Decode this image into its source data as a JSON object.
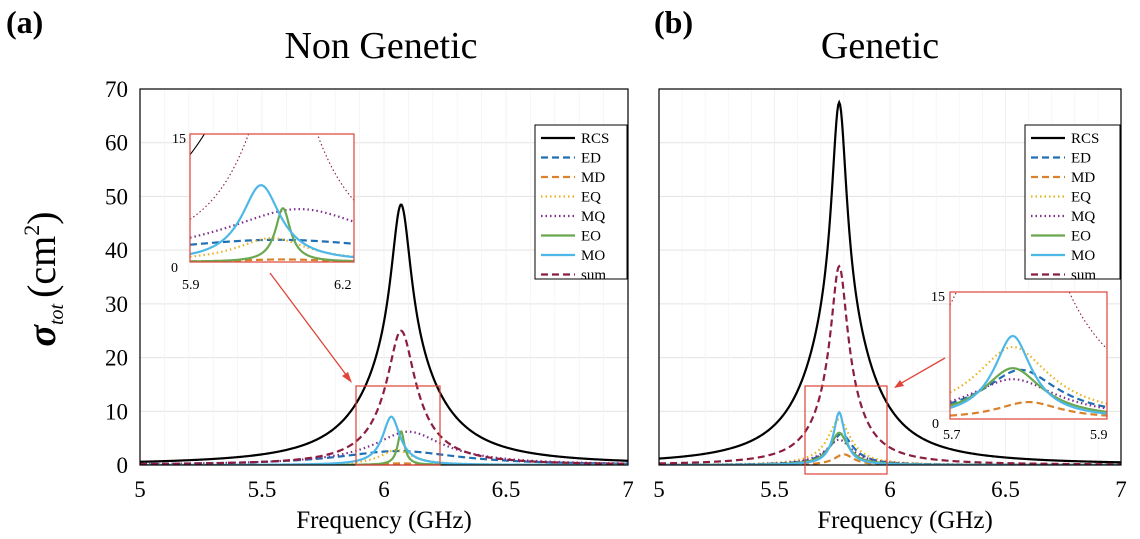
{
  "figure": {
    "y_label_symbol": "σ",
    "y_label_subscript": "tot",
    "y_label_unit": "(cm",
    "y_label_unit_sup": "2",
    "y_label_unit_close": ")"
  },
  "chart_data": [
    {
      "type": "line",
      "panel_label": "(a)",
      "title": "Non Genetic",
      "xlabel": "Frequency (GHz)",
      "ylabel": "σtot (cm²)",
      "xlim": [
        5,
        7
      ],
      "ylim": [
        0,
        70
      ],
      "x_ticks": [
        "5",
        "5.5",
        "6",
        "6.5",
        "7"
      ],
      "y_ticks": [
        "0",
        "10",
        "20",
        "30",
        "40",
        "50",
        "60",
        "70"
      ],
      "grid": true,
      "legend_position": "top-right",
      "legend": [
        "RCS",
        "ED",
        "MD",
        "EQ",
        "MQ",
        "EO",
        "MO",
        "sum"
      ],
      "series": [
        {
          "name": "RCS",
          "color": "#000000",
          "dash": "solid",
          "peak_x": 6.07,
          "peak_y": 48.5,
          "halfwidth": 0.05,
          "tail_gamma": 0.18
        },
        {
          "name": "ED",
          "color": "#1f6fb4",
          "dash": "dashed",
          "peak_x": 6.06,
          "peak_y": 2.6,
          "halfwidth": 0.3,
          "tail_gamma": 0.3
        },
        {
          "name": "MD",
          "color": "#d9822b",
          "dash": "dashed",
          "peak_x": 6.07,
          "peak_y": 0.3,
          "halfwidth": 0.1,
          "tail_gamma": 0.1
        },
        {
          "name": "EQ",
          "color": "#e6b422",
          "dash": "dotted",
          "peak_x": 6.05,
          "peak_y": 2.8,
          "halfwidth": 0.08,
          "tail_gamma": 0.08
        },
        {
          "name": "MQ",
          "color": "#7e2f8e",
          "dash": "dotted",
          "peak_x": 6.1,
          "peak_y": 6.2,
          "halfwidth": 0.15,
          "tail_gamma": 0.25
        },
        {
          "name": "EO",
          "color": "#6aa84f",
          "dash": "solid",
          "peak_x": 6.07,
          "peak_y": 6.3,
          "halfwidth": 0.015,
          "tail_gamma": 0.02
        },
        {
          "name": "MO",
          "color": "#4db8e8",
          "dash": "solid",
          "peak_x": 6.03,
          "peak_y": 9.0,
          "halfwidth": 0.04,
          "tail_gamma": 0.05
        },
        {
          "name": "sum",
          "color": "#8b1e3f",
          "dash": "dashed",
          "peak_x": 6.07,
          "peak_y": 25.0,
          "halfwidth": 0.06,
          "tail_gamma": 0.12
        }
      ],
      "inset": {
        "xlim": [
          5.9,
          6.2
        ],
        "ylim": [
          0,
          15
        ],
        "x_ticks": [
          "5.9",
          "6.2"
        ],
        "y_ticks": [
          "0",
          "15"
        ]
      }
    },
    {
      "type": "line",
      "panel_label": "(b)",
      "title": "Genetic",
      "xlabel": "Frequency (GHz)",
      "ylabel": "",
      "xlim": [
        5,
        7
      ],
      "ylim": [
        0,
        70
      ],
      "x_ticks": [
        "5",
        "5.5",
        "6",
        "6.5",
        "7"
      ],
      "grid": true,
      "legend_position": "top-right",
      "legend": [
        "RCS",
        "ED",
        "MD",
        "EQ",
        "MQ",
        "EO",
        "MO",
        "sum"
      ],
      "series": [
        {
          "name": "RCS",
          "color": "#000000",
          "dash": "solid",
          "peak_x": 5.78,
          "peak_y": 67.5,
          "halfwidth": 0.04,
          "tail_gamma": 0.16
        },
        {
          "name": "ED",
          "color": "#1f6fb4",
          "dash": "dashed",
          "peak_x": 5.79,
          "peak_y": 5.8,
          "halfwidth": 0.05,
          "tail_gamma": 0.08
        },
        {
          "name": "MD",
          "color": "#d9822b",
          "dash": "dashed",
          "peak_x": 5.8,
          "peak_y": 2.0,
          "halfwidth": 0.05,
          "tail_gamma": 0.05
        },
        {
          "name": "EQ",
          "color": "#e6b422",
          "dash": "dotted",
          "peak_x": 5.78,
          "peak_y": 8.5,
          "halfwidth": 0.05,
          "tail_gamma": 0.08
        },
        {
          "name": "MQ",
          "color": "#7e2f8e",
          "dash": "dotted",
          "peak_x": 5.78,
          "peak_y": 4.7,
          "halfwidth": 0.06,
          "tail_gamma": 0.09
        },
        {
          "name": "EO",
          "color": "#6aa84f",
          "dash": "solid",
          "peak_x": 5.78,
          "peak_y": 6.0,
          "halfwidth": 0.04,
          "tail_gamma": 0.06
        },
        {
          "name": "MO",
          "color": "#4db8e8",
          "dash": "solid",
          "peak_x": 5.78,
          "peak_y": 9.8,
          "halfwidth": 0.025,
          "tail_gamma": 0.04
        },
        {
          "name": "sum",
          "color": "#8b1e3f",
          "dash": "dashed",
          "peak_x": 5.78,
          "peak_y": 37.0,
          "halfwidth": 0.04,
          "tail_gamma": 0.1
        }
      ],
      "inset": {
        "xlim": [
          5.7,
          5.9
        ],
        "ylim": [
          0,
          15
        ],
        "x_ticks": [
          "5.7",
          "5.9"
        ],
        "y_ticks": [
          "0",
          "15"
        ]
      }
    }
  ]
}
